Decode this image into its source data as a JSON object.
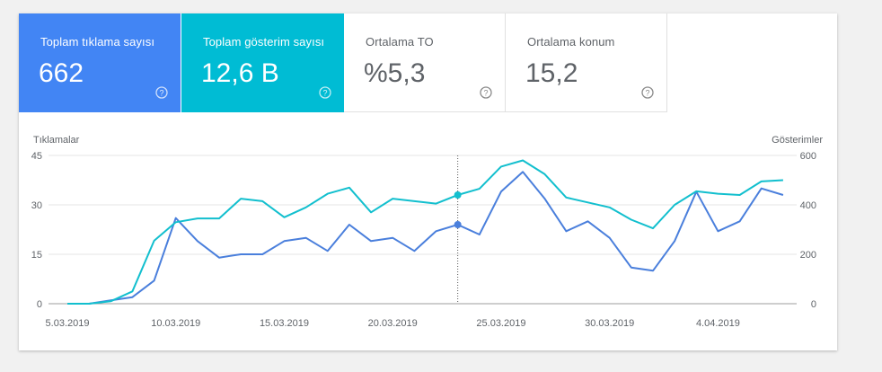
{
  "metrics": [
    {
      "label": "Toplam tıklama sayısı",
      "value": "662",
      "bg": "#4285f4"
    },
    {
      "label": "Toplam gösterim sayısı",
      "value": "12,6 B",
      "bg": "#00bcd4"
    },
    {
      "label": "Ortalama TO",
      "value": "%5,3",
      "bg": "#ffffff"
    },
    {
      "label": "Ortalama konum",
      "value": "15,2",
      "bg": "#ffffff"
    }
  ],
  "colors": {
    "clicks_line": "#4a7fdc",
    "impressions_line": "#12bfce",
    "grid": "#e6e6e6",
    "axis_text": "#5f6368",
    "hover_line": "#555555"
  },
  "icons": {
    "help": "help-circle-icon"
  },
  "chart_data": {
    "type": "line",
    "y_left_label": "Tıklamalar",
    "y_right_label": "Gösterimler",
    "y_left_ticks": [
      "0",
      "15",
      "30",
      "45"
    ],
    "y_right_ticks": [
      "0",
      "200",
      "400",
      "600"
    ],
    "y_left_range": [
      0,
      45
    ],
    "y_right_range": [
      0,
      600
    ],
    "x_tick_labels": [
      "5.03.2019",
      "10.03.2019",
      "15.03.2019",
      "20.03.2019",
      "25.03.2019",
      "30.03.2019",
      "4.04.2019"
    ],
    "x_tick_days": [
      0,
      5,
      10,
      15,
      20,
      25,
      30
    ],
    "x_range_days": [
      0,
      34
    ],
    "hover_day": 18,
    "grid": true,
    "series": [
      {
        "key": "clicks",
        "axis": "left",
        "values": [
          0,
          0,
          1,
          2,
          7,
          26,
          19,
          14,
          15,
          15,
          19,
          20,
          16,
          24,
          19,
          20,
          16,
          22,
          24,
          21,
          34,
          40,
          32,
          22,
          25,
          20,
          11,
          10,
          19,
          34,
          22,
          25,
          35,
          33
        ]
      },
      {
        "key": "impressions",
        "axis": "right",
        "values": [
          0,
          0,
          10,
          50,
          255,
          330,
          345,
          345,
          425,
          415,
          350,
          390,
          445,
          470,
          370,
          425,
          415,
          405,
          440,
          465,
          555,
          580,
          525,
          430,
          410,
          390,
          340,
          305,
          400,
          455,
          445,
          440,
          495,
          500
        ]
      }
    ]
  }
}
